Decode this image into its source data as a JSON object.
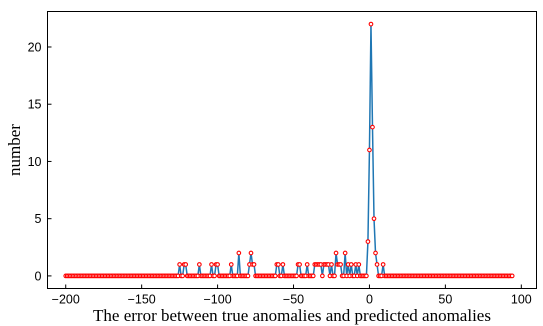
{
  "chart_data": {
    "type": "line",
    "title": "",
    "xlabel": "The error between true anomalies and predicted anomalies",
    "ylabel": "number",
    "xlim": [
      -212,
      110
    ],
    "ylim": [
      -1.1,
      23.1
    ],
    "xticks": [
      -200,
      -150,
      -100,
      -50,
      0,
      50,
      100
    ],
    "xtick_labels": [
      "−200",
      "−150",
      "−100",
      "−50",
      "0",
      "50",
      "100"
    ],
    "yticks": [
      0,
      5,
      10,
      15,
      20
    ],
    "ytick_labels": [
      "0",
      "5",
      "10",
      "15",
      "20"
    ],
    "grid": false,
    "x_start": -200,
    "x_step": 1,
    "series": [
      {
        "line_color": "#1f77b4",
        "marker_edge_color": "#ff0000",
        "marker_face_color": "#ffffff",
        "values": [
          0,
          0,
          0,
          0,
          0,
          0,
          0,
          0,
          0,
          0,
          0,
          0,
          0,
          0,
          0,
          0,
          0,
          0,
          0,
          0,
          0,
          0,
          0,
          0,
          0,
          0,
          0,
          0,
          0,
          0,
          0,
          0,
          0,
          0,
          0,
          0,
          0,
          0,
          0,
          0,
          0,
          0,
          0,
          0,
          0,
          0,
          0,
          0,
          0,
          0,
          0,
          0,
          0,
          0,
          0,
          0,
          0,
          0,
          0,
          0,
          0,
          0,
          0,
          0,
          0,
          0,
          0,
          0,
          0,
          0,
          0,
          0,
          0,
          0,
          0,
          1,
          0,
          0,
          1,
          1,
          0,
          0,
          0,
          0,
          0,
          0,
          0,
          0,
          1,
          0,
          0,
          0,
          0,
          0,
          0,
          0,
          1,
          0,
          0,
          1,
          1,
          0,
          0,
          0,
          0,
          0,
          0,
          0,
          0,
          1,
          0,
          0,
          0,
          0,
          2,
          0,
          0,
          0,
          0,
          0,
          0,
          1,
          2,
          1,
          1,
          0,
          0,
          0,
          0,
          0,
          0,
          0,
          0,
          0,
          0,
          0,
          0,
          0,
          0,
          1,
          1,
          0,
          0,
          1,
          0,
          0,
          0,
          0,
          0,
          0,
          0,
          0,
          0,
          1,
          1,
          0,
          0,
          0,
          0,
          1,
          0,
          0,
          0,
          0,
          1,
          1,
          1,
          1,
          1,
          0,
          1,
          1,
          1,
          1,
          0,
          1,
          0,
          0,
          2,
          1,
          1,
          1,
          0,
          0,
          2,
          0,
          1,
          0,
          1,
          0,
          0,
          1,
          0,
          1,
          0,
          0,
          0,
          0,
          0,
          3,
          11,
          22,
          13,
          5,
          2,
          1,
          0,
          0,
          0,
          1,
          0,
          0,
          0,
          0,
          0,
          0,
          0,
          0,
          0,
          0,
          0,
          0,
          0,
          0,
          0,
          0,
          0,
          0,
          0,
          0,
          0,
          0,
          0,
          0,
          0,
          0,
          0,
          0,
          0,
          0,
          0,
          0,
          0,
          0,
          0,
          0,
          0,
          0,
          0,
          0,
          0,
          0,
          0,
          0,
          0,
          0,
          0,
          0,
          0,
          0,
          0,
          0,
          0,
          0,
          0,
          0,
          0,
          0,
          0,
          0,
          0,
          0,
          0,
          0,
          0,
          0,
          0,
          0,
          0,
          0,
          0,
          0,
          0,
          0,
          0,
          0,
          0,
          0,
          0,
          0,
          0,
          0,
          0,
          0,
          0
        ]
      }
    ]
  }
}
